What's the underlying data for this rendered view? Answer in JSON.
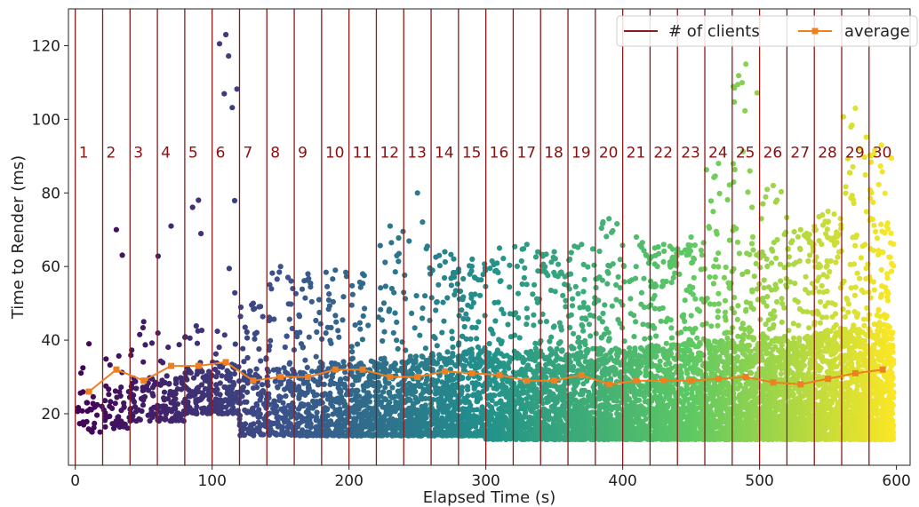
{
  "chart_data": {
    "type": "scatter",
    "xlabel": "Elapsed Time (s)",
    "ylabel": "Time to Render (ms)",
    "xlim": [
      -5,
      610
    ],
    "ylim": [
      6,
      130
    ],
    "xticks": [
      0,
      100,
      200,
      300,
      400,
      500,
      600
    ],
    "yticks": [
      20,
      40,
      60,
      80,
      100,
      120
    ],
    "grid": false,
    "legend": {
      "placement": "top-right",
      "entries": [
        {
          "label": "# of clients",
          "color": "#8b1a1a",
          "marker": "line"
        },
        {
          "label": "average",
          "color": "#f07f1f",
          "marker": "line-square"
        }
      ]
    },
    "client_lines": {
      "color": "#8b1a1a",
      "x": [
        0,
        20,
        40,
        60,
        80,
        100,
        120,
        140,
        160,
        180,
        200,
        220,
        240,
        260,
        280,
        300,
        320,
        340,
        360,
        380,
        400,
        420,
        440,
        460,
        480,
        500,
        520,
        540,
        560,
        580
      ],
      "labels": [
        "1",
        "2",
        "3",
        "4",
        "5",
        "6",
        "7",
        "8",
        "9",
        "10",
        "11",
        "12",
        "13",
        "14",
        "15",
        "16",
        "17",
        "18",
        "19",
        "20",
        "21",
        "22",
        "23",
        "24",
        "25",
        "26",
        "27",
        "28",
        "29",
        "30"
      ],
      "label_y": 91
    },
    "average": {
      "name": "average",
      "color": "#f07f1f",
      "x": [
        10,
        30,
        50,
        70,
        90,
        110,
        130,
        150,
        170,
        190,
        210,
        230,
        250,
        270,
        290,
        310,
        330,
        350,
        370,
        390,
        410,
        430,
        450,
        470,
        490,
        510,
        530,
        550,
        570,
        590
      ],
      "y": [
        26,
        32,
        29,
        33,
        33,
        34,
        29,
        30,
        30,
        32,
        32,
        30,
        30,
        31.5,
        31,
        30.5,
        29,
        29,
        30.5,
        28,
        29,
        29,
        29,
        29.5,
        30,
        28.5,
        28,
        29.5,
        31,
        32
      ]
    },
    "scatter": {
      "colormap": [
        "#440154",
        "#3b528b",
        "#21918c",
        "#5ec962",
        "#fde725"
      ],
      "segments": [
        {
          "clients": 1,
          "x_start": 0,
          "x_end": 20,
          "min": 15,
          "typical_high": 35,
          "max": 39
        },
        {
          "clients": 2,
          "x_start": 20,
          "x_end": 40,
          "min": 16,
          "typical_high": 38,
          "max": 70
        },
        {
          "clients": 3,
          "x_start": 40,
          "x_end": 60,
          "min": 18,
          "typical_high": 40,
          "max": 45
        },
        {
          "clients": 4,
          "x_start": 60,
          "x_end": 80,
          "min": 18,
          "typical_high": 42,
          "max": 71
        },
        {
          "clients": 5,
          "x_start": 80,
          "x_end": 100,
          "min": 20,
          "typical_high": 44,
          "max": 78
        },
        {
          "clients": 6,
          "x_start": 100,
          "x_end": 120,
          "min": 20,
          "typical_high": 45,
          "max": 123
        },
        {
          "clients": 7,
          "x_start": 120,
          "x_end": 140,
          "min": 14,
          "typical_high": 46,
          "max": 50
        },
        {
          "clients": 8,
          "x_start": 140,
          "x_end": 160,
          "min": 14,
          "typical_high": 48,
          "max": 60
        },
        {
          "clients": 9,
          "x_start": 160,
          "x_end": 180,
          "min": 14,
          "typical_high": 48,
          "max": 58
        },
        {
          "clients": 10,
          "x_start": 180,
          "x_end": 200,
          "min": 14,
          "typical_high": 50,
          "max": 59
        },
        {
          "clients": 11,
          "x_start": 200,
          "x_end": 220,
          "min": 14,
          "typical_high": 52,
          "max": 58
        },
        {
          "clients": 12,
          "x_start": 220,
          "x_end": 240,
          "min": 14,
          "typical_high": 52,
          "max": 71
        },
        {
          "clients": 13,
          "x_start": 240,
          "x_end": 260,
          "min": 14,
          "typical_high": 54,
          "max": 80
        },
        {
          "clients": 14,
          "x_start": 260,
          "x_end": 280,
          "min": 14,
          "typical_high": 55,
          "max": 64
        },
        {
          "clients": 15,
          "x_start": 280,
          "x_end": 300,
          "min": 14,
          "typical_high": 56,
          "max": 62
        },
        {
          "clients": 16,
          "x_start": 300,
          "x_end": 320,
          "min": 13,
          "typical_high": 56,
          "max": 65
        },
        {
          "clients": 17,
          "x_start": 320,
          "x_end": 340,
          "min": 13,
          "typical_high": 57,
          "max": 66
        },
        {
          "clients": 18,
          "x_start": 340,
          "x_end": 360,
          "min": 13,
          "typical_high": 58,
          "max": 64
        },
        {
          "clients": 19,
          "x_start": 360,
          "x_end": 380,
          "min": 13,
          "typical_high": 58,
          "max": 66
        },
        {
          "clients": 20,
          "x_start": 380,
          "x_end": 400,
          "min": 13,
          "typical_high": 58,
          "max": 73
        },
        {
          "clients": 21,
          "x_start": 400,
          "x_end": 420,
          "min": 13,
          "typical_high": 59,
          "max": 68
        },
        {
          "clients": 22,
          "x_start": 420,
          "x_end": 440,
          "min": 13,
          "typical_high": 60,
          "max": 66
        },
        {
          "clients": 23,
          "x_start": 440,
          "x_end": 460,
          "min": 13,
          "typical_high": 61,
          "max": 68
        },
        {
          "clients": 24,
          "x_start": 460,
          "x_end": 480,
          "min": 13,
          "typical_high": 62,
          "max": 88
        },
        {
          "clients": 25,
          "x_start": 480,
          "x_end": 500,
          "min": 13,
          "typical_high": 64,
          "max": 115
        },
        {
          "clients": 26,
          "x_start": 500,
          "x_end": 520,
          "min": 13,
          "typical_high": 64,
          "max": 82
        },
        {
          "clients": 27,
          "x_start": 520,
          "x_end": 540,
          "min": 13,
          "typical_high": 64,
          "max": 70
        },
        {
          "clients": 28,
          "x_start": 540,
          "x_end": 560,
          "min": 13,
          "typical_high": 66,
          "max": 75
        },
        {
          "clients": 29,
          "x_start": 560,
          "x_end": 580,
          "min": 13,
          "typical_high": 68,
          "max": 103
        },
        {
          "clients": 30,
          "x_start": 580,
          "x_end": 598,
          "min": 13,
          "typical_high": 70,
          "max": 93
        }
      ]
    }
  }
}
